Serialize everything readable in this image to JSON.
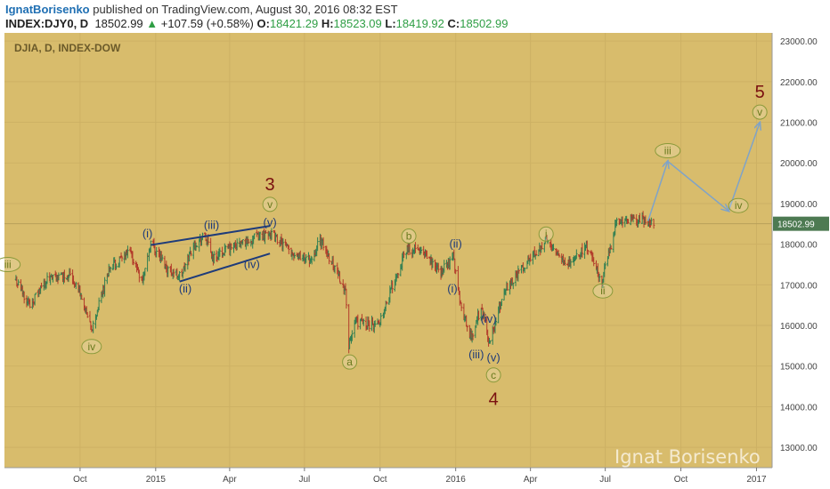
{
  "header": {
    "author": "IgnatBorisenko",
    "published_text": " published on TradingView.com, August 30, 2016 08:32 EST",
    "symbol": "INDEX:DJY0, D",
    "last": "18502.99",
    "change": "+107.59 (+0.58%)",
    "open_label": "O:",
    "open": "18421.29",
    "high_label": "H:",
    "high": "18523.09",
    "low_label": "L:",
    "low": "18419.92",
    "close_label": "C:",
    "close": "18502.99"
  },
  "chart_data": {
    "type": "ohlc",
    "title": "DJIA, D, INDEX-DOW",
    "watermark": "Ignat Borisenko",
    "price_label": "18502.99",
    "ylim": [
      12500,
      23200
    ],
    "y_ticks": [
      "13000.00",
      "14000.00",
      "15000.00",
      "16000.00",
      "17000.00",
      "18000.00",
      "19000.00",
      "20000.00",
      "21000.00",
      "22000.00",
      "23000.00"
    ],
    "x_ticks": [
      "Oct",
      "2015",
      "Apr",
      "Jul",
      "Oct",
      "2016",
      "Apr",
      "Jul",
      "Oct",
      "2017"
    ],
    "price_path": [
      [
        "2014-07-15",
        17100
      ],
      [
        "2014-08-01",
        16500
      ],
      [
        "2014-08-20",
        17100
      ],
      [
        "2014-09-19",
        17280
      ],
      [
        "2014-10-01",
        16800
      ],
      [
        "2014-10-15",
        15850
      ],
      [
        "2014-11-05",
        17400
      ],
      [
        "2014-12-01",
        17800
      ],
      [
        "2014-12-16",
        17100
      ],
      [
        "2014-12-26",
        18050
      ],
      [
        "2015-01-15",
        17400
      ],
      [
        "2015-02-01",
        17200
      ],
      [
        "2015-02-15",
        17950
      ],
      [
        "2015-03-02",
        18200
      ],
      [
        "2015-03-12",
        17650
      ],
      [
        "2015-04-01",
        17900
      ],
      [
        "2015-05-19",
        18300
      ],
      [
        "2015-06-15",
        17800
      ],
      [
        "2015-07-09",
        17600
      ],
      [
        "2015-07-20",
        18100
      ],
      [
        "2015-08-05",
        17500
      ],
      [
        "2015-08-20",
        16900
      ],
      [
        "2015-08-24",
        15450
      ],
      [
        "2015-09-01",
        16100
      ],
      [
        "2015-09-28",
        16000
      ],
      [
        "2015-10-20",
        17200
      ],
      [
        "2015-11-03",
        17900
      ],
      [
        "2015-11-20",
        17800
      ],
      [
        "2015-12-14",
        17300
      ],
      [
        "2015-12-29",
        17720
      ],
      [
        "2016-01-08",
        16400
      ],
      [
        "2016-01-20",
        15700
      ],
      [
        "2016-02-01",
        16450
      ],
      [
        "2016-02-11",
        15550
      ],
      [
        "2016-03-01",
        16900
      ],
      [
        "2016-04-20",
        18100
      ],
      [
        "2016-05-19",
        17500
      ],
      [
        "2016-06-08",
        17950
      ],
      [
        "2016-06-27",
        17100
      ],
      [
        "2016-07-15",
        18550
      ],
      [
        "2016-08-15",
        18600
      ],
      [
        "2016-08-29",
        18503
      ]
    ],
    "annotations": [
      {
        "date": "2014-07-05",
        "price": 17500,
        "label": "iii",
        "style": "green-circle"
      },
      {
        "date": "2014-10-15",
        "price": 15480,
        "label": "iv",
        "style": "green-circle"
      },
      {
        "date": "2014-12-22",
        "price": 18260,
        "label": "(i)",
        "style": "blue"
      },
      {
        "date": "2015-02-06",
        "price": 16900,
        "label": "(ii)",
        "style": "blue"
      },
      {
        "date": "2015-03-10",
        "price": 18460,
        "label": "(iii)",
        "style": "blue"
      },
      {
        "date": "2015-04-28",
        "price": 17500,
        "label": "(iv)",
        "style": "blue"
      },
      {
        "date": "2015-05-20",
        "price": 18530,
        "label": "(v)",
        "style": "blue"
      },
      {
        "date": "2015-05-20",
        "price": 18980,
        "label": "v",
        "style": "green-circle"
      },
      {
        "date": "2015-05-20",
        "price": 19480,
        "label": "3",
        "style": "red-big"
      },
      {
        "date": "2015-08-25",
        "price": 15100,
        "label": "a",
        "style": "green-circle"
      },
      {
        "date": "2015-11-05",
        "price": 18200,
        "label": "b",
        "style": "green-circle"
      },
      {
        "date": "2016-01-01",
        "price": 18000,
        "label": "(ii)",
        "style": "blue"
      },
      {
        "date": "2015-12-28",
        "price": 16900,
        "label": "(i)",
        "style": "blue"
      },
      {
        "date": "2016-02-10",
        "price": 16150,
        "label": "(iv)",
        "style": "blue"
      },
      {
        "date": "2016-01-26",
        "price": 15280,
        "label": "(iii)",
        "style": "blue"
      },
      {
        "date": "2016-02-16",
        "price": 15200,
        "label": "(v)",
        "style": "blue"
      },
      {
        "date": "2016-02-16",
        "price": 14780,
        "label": "c",
        "style": "green-circle"
      },
      {
        "date": "2016-02-16",
        "price": 14200,
        "label": "4",
        "style": "red-big"
      },
      {
        "date": "2016-04-20",
        "price": 18250,
        "label": "i",
        "style": "green-circle"
      },
      {
        "date": "2016-06-28",
        "price": 16850,
        "label": "ii",
        "style": "green-circle"
      },
      {
        "date": "2016-09-15",
        "price": 20300,
        "label": "iii",
        "style": "green-circle"
      },
      {
        "date": "2016-12-10",
        "price": 18950,
        "label": "iv",
        "style": "green-circle"
      },
      {
        "date": "2017-01-05",
        "price": 21250,
        "label": "v",
        "style": "green-circle"
      },
      {
        "date": "2017-01-05",
        "price": 21760,
        "label": "5",
        "style": "red-big"
      }
    ],
    "trendlines": [
      {
        "from": [
          "2014-12-26",
          17980
        ],
        "to": [
          "2015-05-20",
          18450
        ]
      },
      {
        "from": [
          "2015-01-30",
          17080
        ],
        "to": [
          "2015-05-20",
          17770
        ]
      }
    ],
    "projection": [
      [
        "2016-08-22",
        18570
      ],
      [
        "2016-09-15",
        20040
      ],
      [
        "2016-11-28",
        18820
      ],
      [
        "2017-01-05",
        20990
      ]
    ],
    "colors": {
      "plot_bg": "#d8bc6c",
      "up_bar": "#2f7f52",
      "down_bar": "#b23a2a",
      "wave_blue": "#1e3b7a",
      "wave_green": "#6a7a1e",
      "wave_red": "#7a1010",
      "projection": "#7fa3c8",
      "price_tag": "#4d7a52"
    }
  }
}
